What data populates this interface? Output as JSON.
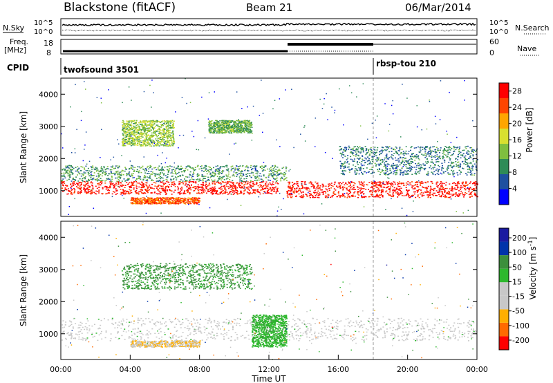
{
  "header": {
    "station": "Blackstone (fitACF)",
    "beam": "Beam 21",
    "date": "06/Mar/2014"
  },
  "noise_panel": {
    "left_label": "N.Sky",
    "right_label": "N.Search",
    "left_ticks": [
      "10^5",
      "10^0"
    ],
    "right_ticks": [
      "10^5",
      "10^0"
    ]
  },
  "freq_panel": {
    "left_label_line1": "Freq.",
    "left_label_line2": "[MHz]",
    "right_label": "Nave",
    "left_ticks": [
      "18",
      "8"
    ],
    "right_ticks": [
      "60",
      "0"
    ]
  },
  "cpid_panel": {
    "label": "CPID",
    "segments": [
      {
        "name": "twofsound 3501",
        "start_hour": 0
      },
      {
        "name": "rbsp-tou 210",
        "start_hour": 18
      }
    ]
  },
  "colors": {
    "power_scale": [
      "#0000ff",
      "#1e50a0",
      "#2e8b57",
      "#7fbf3f",
      "#d8e030",
      "#ffa500",
      "#ff4500",
      "#ff0000"
    ],
    "velocity_scale": [
      "#ff0000",
      "#ff6a00",
      "#ffae00",
      "#c8c8c8",
      "#c8c8c8",
      "#2db82d",
      "#3c8f3c",
      "#0033aa",
      "#1a1aa0"
    ]
  },
  "chart_data": [
    {
      "type": "heatmap",
      "name": "power",
      "xlabel": "",
      "ylabel": "Slant Range [km]",
      "xlim": [
        0,
        24
      ],
      "ylim": [
        200,
        4500
      ],
      "yticks": [
        "1000",
        "2000",
        "3000",
        "4000"
      ],
      "colorbar_label": "Power [dB]",
      "colorbar_ticks": [
        "4",
        "8",
        "12",
        "16",
        "20",
        "24",
        "28"
      ],
      "colorbar_range": [
        0,
        30
      ],
      "features": [
        {
          "band": "ground scatter",
          "hours": [
            0,
            12.5
          ],
          "range_km": [
            900,
            1300
          ],
          "power_db": 28
        },
        {
          "band": "arc",
          "hours": [
            0,
            13
          ],
          "range_km": [
            1300,
            1800
          ],
          "power_db": 10
        },
        {
          "band": "patch",
          "hours": [
            4,
            8
          ],
          "range_km": [
            600,
            800
          ],
          "power_db": 24
        },
        {
          "band": "high patch",
          "hours": [
            3.5,
            6.5
          ],
          "range_km": [
            2400,
            3200
          ],
          "power_db": 14
        },
        {
          "band": "high patch",
          "hours": [
            8.5,
            11
          ],
          "range_km": [
            2800,
            3200
          ],
          "power_db": 12
        },
        {
          "band": "evening band",
          "hours": [
            13,
            24
          ],
          "range_km": [
            800,
            1300
          ],
          "power_db": 28
        },
        {
          "band": "upper layer",
          "hours": [
            16,
            24
          ],
          "range_km": [
            1500,
            2400
          ],
          "power_db": 8
        }
      ]
    },
    {
      "type": "heatmap",
      "name": "velocity",
      "xlabel": "Time UT",
      "ylabel": "Slant Range [km]",
      "xlim": [
        0,
        24
      ],
      "ylim": [
        200,
        4500
      ],
      "yticks": [
        "1000",
        "2000",
        "3000",
        "4000"
      ],
      "xticks": [
        "00:00",
        "04:00",
        "08:00",
        "12:00",
        "16:00",
        "20:00",
        "00:00"
      ],
      "colorbar_label": "Velocity [m s^-1]",
      "colorbar_ticks": [
        "200",
        "100",
        "50",
        "15",
        "-15",
        "-50",
        "-100",
        "-200"
      ],
      "colorbar_range": [
        -250,
        250
      ],
      "features": [
        {
          "band": "ground scatter",
          "hours": [
            0,
            24
          ],
          "range_km": [
            800,
            1500
          ],
          "velocity": 0
        },
        {
          "band": "streak",
          "hours": [
            11,
            13
          ],
          "range_km": [
            600,
            1600
          ],
          "velocity": 60
        },
        {
          "band": "patch",
          "hours": [
            4,
            8
          ],
          "range_km": [
            600,
            800
          ],
          "velocity": -80
        },
        {
          "band": "high patch",
          "hours": [
            3.5,
            11
          ],
          "range_km": [
            2400,
            3200
          ],
          "velocity": 100
        }
      ]
    }
  ]
}
